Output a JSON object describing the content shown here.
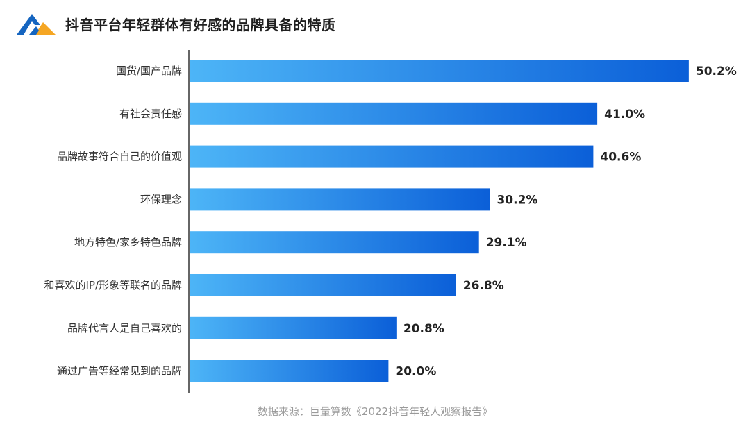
{
  "title": "抖音平台年轻群体有好感的品牌具备的特质",
  "source": "数据来源：巨量算数《2022抖音年轻人观察报告》",
  "colors": {
    "bar_start": "#4db5f7",
    "bar_end": "#0b5fd8",
    "logo_blue": "#1565c0",
    "logo_orange": "#f5a623",
    "axis": "#333333"
  },
  "chart_data": {
    "type": "bar",
    "orientation": "horizontal",
    "title": "抖音平台年轻群体有好感的品牌具备的特质",
    "categories": [
      "国货/国产品牌",
      "有社会责任感",
      "品牌故事符合自己的价值观",
      "环保理念",
      "地方特色/家乡特色品牌",
      "和喜欢的IP/形象等联名的品牌",
      "品牌代言人是自己喜欢的",
      "通过广告等经常见到的品牌"
    ],
    "values": [
      50.2,
      41.0,
      40.6,
      30.2,
      29.1,
      26.8,
      20.8,
      20.0
    ],
    "value_labels": [
      "50.2%",
      "41.0%",
      "40.6%",
      "30.2%",
      "29.1%",
      "26.8%",
      "20.8%",
      "20.0%"
    ],
    "unit": "%",
    "grid": false,
    "legend": "none"
  }
}
